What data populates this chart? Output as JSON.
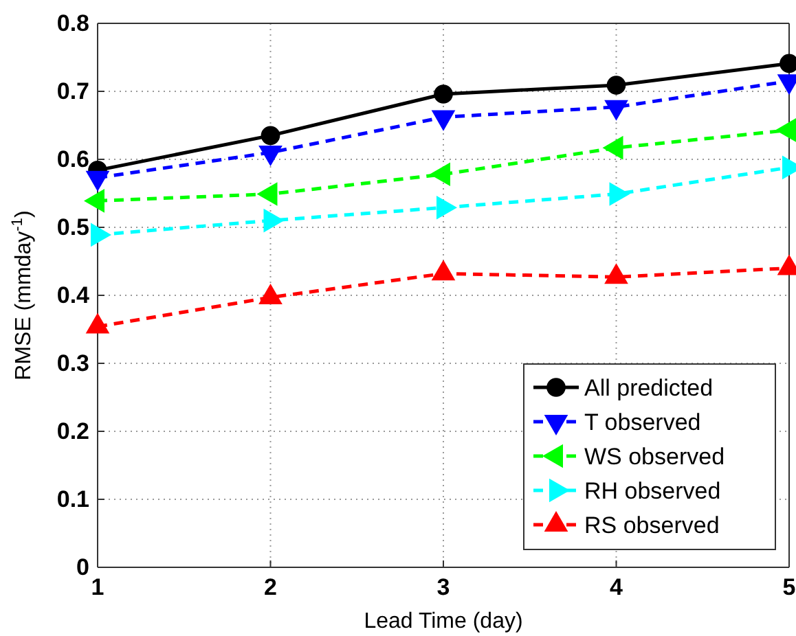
{
  "chart_data": {
    "type": "line",
    "xlabel": "Lead Time (day)",
    "ylabel": "RMSE (mmday$^{-1}$)",
    "x": [
      1,
      2,
      3,
      4,
      5
    ],
    "xlim": [
      1,
      5
    ],
    "xticks": [
      1,
      2,
      3,
      4,
      5
    ],
    "ylim": [
      0,
      0.8
    ],
    "yticks": [
      0,
      0.1,
      0.2,
      0.3,
      0.4,
      0.5,
      0.6,
      0.7,
      0.8
    ],
    "grid": true,
    "legend": "bottom right",
    "series": [
      {
        "name": "All predicted",
        "color": "#000000",
        "marker": "circle",
        "line_style": "solid",
        "values": [
          0.584,
          0.635,
          0.696,
          0.709,
          0.741
        ]
      },
      {
        "name": "T observed",
        "color": "#0000ff",
        "marker": "triangle-down",
        "line_style": "dashed",
        "values": [
          0.573,
          0.61,
          0.662,
          0.677,
          0.715
        ]
      },
      {
        "name": "WS observed",
        "color": "#00ff00",
        "marker": "triangle-left",
        "line_style": "dashed",
        "values": [
          0.539,
          0.549,
          0.578,
          0.617,
          0.643
        ]
      },
      {
        "name": "RH observed",
        "color": "#00ffff",
        "marker": "triangle-right",
        "line_style": "dashed",
        "values": [
          0.489,
          0.51,
          0.529,
          0.549,
          0.588
        ]
      },
      {
        "name": "RS observed",
        "color": "#ff0000",
        "marker": "triangle",
        "line_style": "dashed",
        "values": [
          0.354,
          0.397,
          0.432,
          0.427,
          0.44
        ]
      }
    ]
  }
}
